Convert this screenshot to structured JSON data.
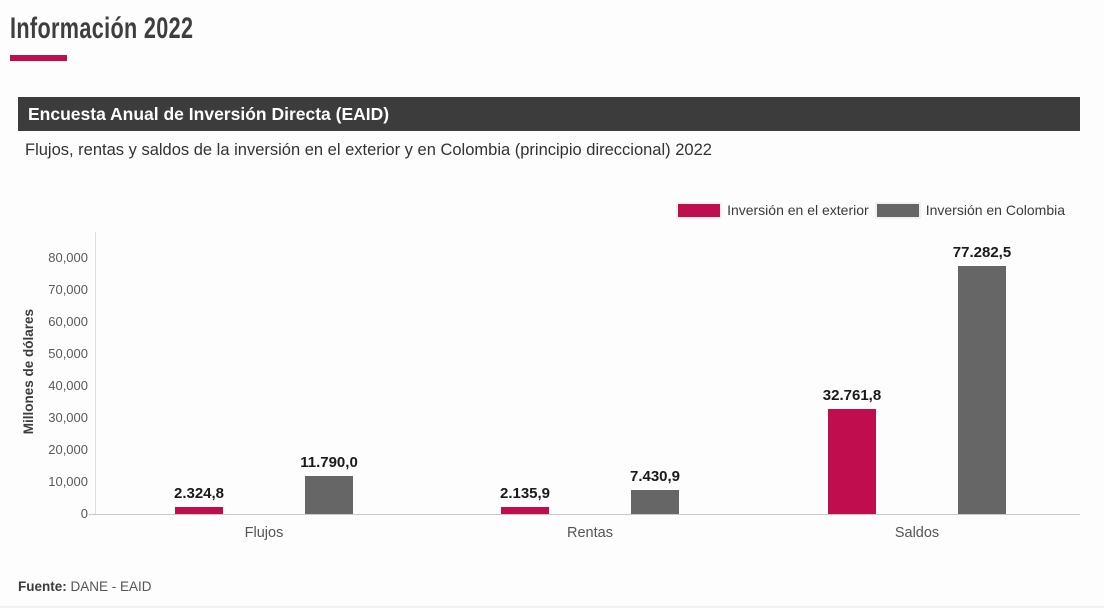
{
  "page": {
    "title": "Información 2022",
    "section_header": "Encuesta Anual de Inversión Directa (EAID)",
    "subtitle": "Flujos, rentas y saldos de la inversión en el exterior y en Colombia (principio direccional) 2022",
    "footer_label": "Fuente:",
    "footer_value": "DANE - EAID"
  },
  "colors": {
    "accent": "#C00D4D",
    "series_exterior": "#C00D4D",
    "series_colombia": "#666666",
    "header_bar_bg": "#3C3C3C",
    "header_bar_text": "#FFFFFF"
  },
  "legend": {
    "items": [
      {
        "label": "Inversión en el exterior",
        "color": "#C00D4D"
      },
      {
        "label": "Inversión en Colombia",
        "color": "#666666"
      }
    ]
  },
  "chart_data": {
    "type": "bar",
    "title": "Flujos, rentas y saldos de la inversión en el exterior y en Colombia (principio direccional) 2022",
    "categories": [
      "Flujos",
      "Rentas",
      "Saldos"
    ],
    "series": [
      {
        "name": "Inversión en el exterior",
        "color": "#C00D4D",
        "values": [
          2324.8,
          2135.9,
          32761.8
        ],
        "value_labels": [
          "2.324,8",
          "2.135,9",
          "32.761,8"
        ]
      },
      {
        "name": "Inversión en Colombia",
        "color": "#666666",
        "values": [
          11790.0,
          7430.9,
          77282.5
        ],
        "value_labels": [
          "11.790,0",
          "7.430,9",
          "77.282,5"
        ]
      }
    ],
    "xlabel": "",
    "ylabel": "Millones de dólares",
    "ylim": [
      0,
      88000
    ],
    "yticks": [
      0,
      10000,
      20000,
      30000,
      40000,
      50000,
      60000,
      70000,
      80000
    ],
    "ytick_labels": [
      "0",
      "10,000",
      "20,000",
      "30,000",
      "40,000",
      "50,000",
      "60,000",
      "70,000",
      "80,000"
    ],
    "grid": false,
    "legend_position": "top-right"
  }
}
